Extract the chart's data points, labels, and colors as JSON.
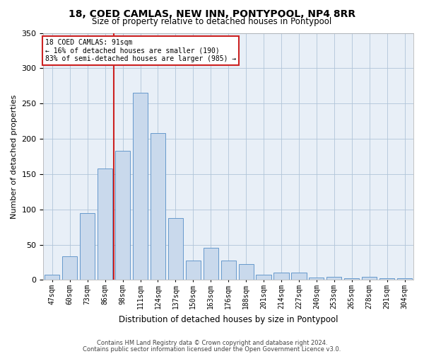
{
  "title": "18, COED CAMLAS, NEW INN, PONTYPOOL, NP4 8RR",
  "subtitle": "Size of property relative to detached houses in Pontypool",
  "xlabel": "Distribution of detached houses by size in Pontypool",
  "ylabel": "Number of detached properties",
  "categories": [
    "47sqm",
    "60sqm",
    "73sqm",
    "86sqm",
    "98sqm",
    "111sqm",
    "124sqm",
    "137sqm",
    "150sqm",
    "163sqm",
    "176sqm",
    "188sqm",
    "201sqm",
    "214sqm",
    "227sqm",
    "240sqm",
    "253sqm",
    "265sqm",
    "278sqm",
    "291sqm",
    "304sqm"
  ],
  "values": [
    7,
    33,
    95,
    158,
    183,
    265,
    208,
    88,
    27,
    46,
    27,
    22,
    7,
    10,
    10,
    3,
    4,
    2,
    4,
    2,
    2
  ],
  "bar_color": "#c9d9ec",
  "bar_edge_color": "#6699cc",
  "grid_color": "#b0c4d8",
  "bg_color": "#e8eff7",
  "annotation_line1": "18 COED CAMLAS: 91sqm",
  "annotation_line2": "← 16% of detached houses are smaller (190)",
  "annotation_line3": "83% of semi-detached houses are larger (985) →",
  "annotation_box_color": "#cc2222",
  "vline_category_index": 3,
  "vline_color": "#cc2222",
  "footnote1": "Contains HM Land Registry data © Crown copyright and database right 2024.",
  "footnote2": "Contains public sector information licensed under the Open Government Licence v3.0.",
  "ylim": [
    0,
    350
  ],
  "yticks": [
    0,
    50,
    100,
    150,
    200,
    250,
    300,
    350
  ]
}
